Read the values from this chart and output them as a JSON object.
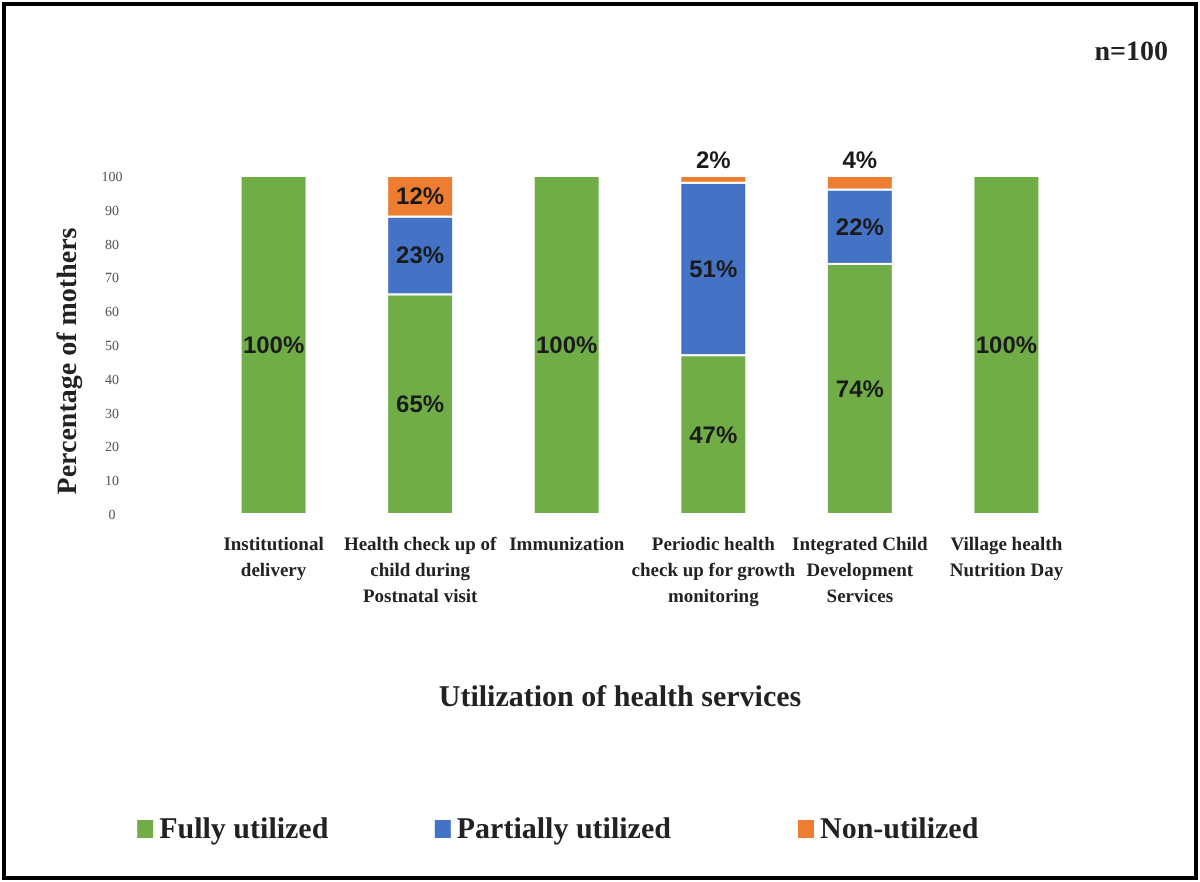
{
  "chart_data": {
    "type": "bar",
    "stacked": true,
    "xlabel": "Utilization of health services",
    "ylabel": "Percentage of mothers",
    "categories": [
      "Institutional delivery",
      "Health check up of child during Postnatal visit",
      "Immunization",
      "Periodic health check up for growth monitoring",
      "Integrated Child Development Services",
      "Village health Nutrition Day"
    ],
    "series": [
      {
        "name": "Fully utilized",
        "color": "#70ad47",
        "values": [
          100,
          65,
          100,
          47,
          74,
          100
        ],
        "value_labels": [
          "100%",
          "65%",
          "100%",
          "47%",
          "74%",
          "100%"
        ]
      },
      {
        "name": "Partially utilized",
        "color": "#4472c4",
        "values": [
          0,
          23,
          0,
          51,
          22,
          0
        ],
        "value_labels": [
          null,
          "23%",
          null,
          "51%",
          "22%",
          null
        ]
      },
      {
        "name": "Non-utilized",
        "color": "#ed7d31",
        "values": [
          0,
          12,
          0,
          2,
          4,
          0
        ],
        "value_labels": [
          null,
          "12%",
          null,
          "2%",
          "4%",
          null
        ]
      }
    ],
    "ylim": [
      0,
      100
    ],
    "yticks": [
      0,
      10,
      20,
      30,
      40,
      50,
      60,
      70,
      80,
      90,
      100
    ],
    "legend": "bottom",
    "annotations": [
      "n=100"
    ]
  }
}
